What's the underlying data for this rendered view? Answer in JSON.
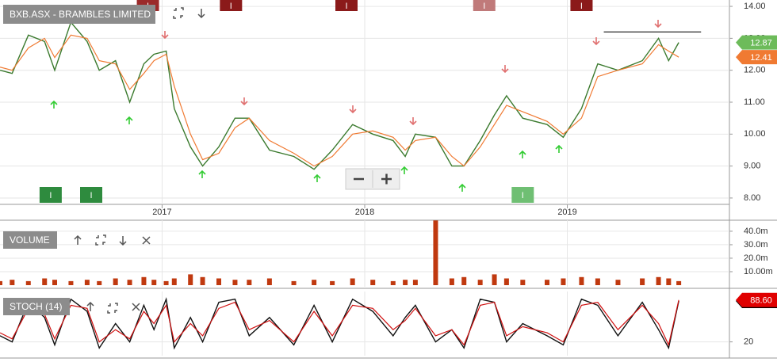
{
  "chart_data": [
    {
      "type": "line",
      "title": "BXB.ASX - BRAMBLES LIMITED",
      "x": [
        2016.2,
        2016.26,
        2016.34,
        2016.42,
        2016.47,
        2016.55,
        2016.63,
        2016.69,
        2016.77,
        2016.84,
        2016.91,
        2016.96,
        2017.02,
        2017.06,
        2017.14,
        2017.2,
        2017.28,
        2017.36,
        2017.43,
        2017.53,
        2017.65,
        2017.75,
        2017.84,
        2017.94,
        2018.04,
        2018.14,
        2018.2,
        2018.25,
        2018.35,
        2018.43,
        2018.49,
        2018.57,
        2018.64,
        2018.7,
        2018.78,
        2018.9,
        2018.98,
        2019.07,
        2019.15,
        2019.25,
        2019.37,
        2019.45,
        2019.5,
        2019.55
      ],
      "series": [
        {
          "color": "#3b7a2e",
          "values": [
            12.0,
            11.9,
            13.1,
            12.9,
            12.0,
            13.5,
            12.9,
            12.0,
            12.3,
            11.0,
            12.2,
            12.5,
            12.6,
            10.8,
            9.6,
            9.0,
            9.6,
            10.5,
            10.5,
            9.5,
            9.3,
            8.9,
            9.5,
            10.3,
            10.0,
            9.8,
            9.3,
            10.0,
            9.9,
            9.0,
            9.0,
            9.8,
            10.6,
            11.2,
            10.5,
            10.3,
            9.9,
            10.8,
            12.2,
            12.0,
            12.3,
            13.0,
            12.3,
            12.87
          ],
          "label_color": "#6dbb5a"
        },
        {
          "color": "#f07a32",
          "values": [
            12.1,
            12.0,
            12.7,
            13.0,
            12.4,
            13.1,
            13.0,
            12.3,
            12.2,
            11.4,
            11.9,
            12.3,
            12.5,
            11.5,
            10.0,
            9.2,
            9.4,
            10.2,
            10.5,
            9.8,
            9.4,
            9.0,
            9.3,
            10.0,
            10.1,
            9.9,
            9.5,
            9.8,
            9.9,
            9.3,
            9.0,
            9.6,
            10.3,
            10.9,
            10.7,
            10.4,
            10.0,
            10.5,
            11.8,
            12.0,
            12.2,
            12.8,
            12.6,
            12.41
          ],
          "label_color": "#f07a32"
        }
      ],
      "xlim": [
        2016.2,
        2019.8
      ],
      "xticks": [
        2017,
        2018,
        2019
      ],
      "ylim": [
        7.8,
        14.2
      ],
      "yticks": [
        {
          "value": 8,
          "label": "8.00"
        },
        {
          "value": 9,
          "label": "9.00"
        },
        {
          "value": 10,
          "label": "10.00"
        },
        {
          "value": 11,
          "label": "11.00"
        },
        {
          "value": 12,
          "label": "12.00"
        },
        {
          "value": 13,
          "label": "13.00"
        },
        {
          "value": 14,
          "label": "14.00"
        }
      ],
      "grid": true,
      "last_value_label": true,
      "hline": {
        "value": 13.2,
        "x": [
          2019.18,
          2019.66
        ]
      },
      "events": [
        {
          "x": 2016.45,
          "label": "I",
          "position": "bottom",
          "color": "#2e8b3e"
        },
        {
          "x": 2016.65,
          "label": "I",
          "position": "bottom",
          "color": "#2e8b3e"
        },
        {
          "x": 2018.78,
          "label": "I",
          "position": "bottom",
          "color": "#6fbf73"
        },
        {
          "x": 2016.93,
          "label": "I",
          "position": "top",
          "color": "#9b2a2a"
        },
        {
          "x": 2017.34,
          "label": "I",
          "position": "top",
          "color": "#8b1a1a"
        },
        {
          "x": 2017.91,
          "label": "I",
          "position": "top",
          "color": "#8b1a1a"
        },
        {
          "x": 2018.59,
          "label": "I",
          "position": "top",
          "color": "#c07a7a"
        },
        {
          "x": 2019.07,
          "label": "I",
          "position": "top",
          "color": "#8b1a1a"
        }
      ]
    },
    {
      "type": "bar",
      "title": "VOLUME",
      "x": [
        2016.2,
        2016.26,
        2016.34,
        2016.42,
        2016.47,
        2016.55,
        2016.63,
        2016.69,
        2016.77,
        2016.84,
        2016.91,
        2016.96,
        2017.02,
        2017.06,
        2017.14,
        2017.2,
        2017.28,
        2017.36,
        2017.43,
        2017.53,
        2017.65,
        2017.75,
        2017.84,
        2017.94,
        2018.04,
        2018.14,
        2018.2,
        2018.25,
        2018.35,
        2018.43,
        2018.49,
        2018.57,
        2018.64,
        2018.7,
        2018.78,
        2018.9,
        2018.98,
        2019.07,
        2019.15,
        2019.25,
        2019.37,
        2019.45,
        2019.5,
        2019.55
      ],
      "values": [
        3,
        4,
        3,
        5,
        4,
        3,
        4,
        3,
        5,
        4,
        6,
        4,
        3,
        5,
        8,
        6,
        5,
        4,
        4,
        5,
        3,
        4,
        3,
        5,
        4,
        3,
        4,
        4,
        48,
        5,
        6,
        4,
        8,
        5,
        4,
        4,
        5,
        6,
        5,
        4,
        5,
        6,
        5,
        3
      ],
      "color": "#c0390f",
      "xlim": [
        2016.2,
        2019.8
      ],
      "xticks": [
        2017,
        2018,
        2019
      ],
      "ylim": [
        0,
        47
      ],
      "yticks": [
        {
          "value": 10,
          "label": "10.00m"
        },
        {
          "value": 20,
          "label": "20.0m"
        },
        {
          "value": 30,
          "label": "30.0m"
        },
        {
          "value": 40,
          "label": "40.0m"
        }
      ],
      "grid": true
    },
    {
      "type": "line",
      "title": "STOCH (14)",
      "x": [
        2016.2,
        2016.26,
        2016.34,
        2016.42,
        2016.47,
        2016.55,
        2016.63,
        2016.69,
        2016.77,
        2016.84,
        2016.91,
        2016.96,
        2017.02,
        2017.06,
        2017.14,
        2017.2,
        2017.28,
        2017.36,
        2017.43,
        2017.53,
        2017.65,
        2017.75,
        2017.84,
        2017.94,
        2018.04,
        2018.14,
        2018.2,
        2018.25,
        2018.35,
        2018.43,
        2018.49,
        2018.57,
        2018.64,
        2018.7,
        2018.78,
        2018.9,
        2018.98,
        2019.07,
        2019.15,
        2019.25,
        2019.37,
        2019.45,
        2019.5,
        2019.55
      ],
      "series": [
        {
          "color": "#111111",
          "values": [
            30,
            20,
            85,
            60,
            15,
            90,
            70,
            10,
            50,
            20,
            80,
            40,
            90,
            10,
            60,
            20,
            85,
            90,
            30,
            60,
            15,
            80,
            20,
            90,
            70,
            30,
            60,
            80,
            20,
            40,
            10,
            90,
            85,
            20,
            50,
            30,
            15,
            90,
            80,
            30,
            85,
            40,
            10,
            87.02
          ],
          "label_color": "#000000"
        },
        {
          "color": "#d01010",
          "values": [
            35,
            25,
            75,
            65,
            25,
            80,
            75,
            20,
            40,
            25,
            70,
            50,
            80,
            20,
            50,
            30,
            75,
            85,
            40,
            55,
            20,
            70,
            30,
            80,
            75,
            40,
            55,
            75,
            30,
            40,
            15,
            80,
            85,
            30,
            45,
            35,
            20,
            80,
            85,
            40,
            80,
            50,
            15,
            88.6
          ],
          "value_labels": [
            null,
            null,
            null,
            null,
            null,
            null,
            null,
            null,
            null,
            null,
            null,
            null,
            null,
            null,
            null,
            null,
            null,
            null,
            null,
            null,
            null,
            null,
            null,
            null,
            null,
            null,
            null,
            null,
            null,
            null,
            null,
            null,
            null,
            null,
            null,
            null,
            null,
            null,
            null,
            null,
            null,
            null,
            null,
            "88.60"
          ],
          "label_color": "#e00000"
        }
      ],
      "xlim": [
        2016.2,
        2019.8
      ],
      "xticks": [
        2017,
        2018,
        2019
      ],
      "ylim": [
        0,
        100
      ],
      "yticks": [
        20
      ],
      "grid": true,
      "last_value_label": true
    }
  ]
}
